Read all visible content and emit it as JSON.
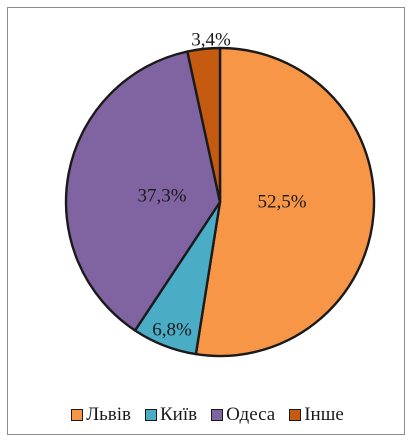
{
  "chart_data": {
    "type": "pie",
    "title": "",
    "slices": [
      {
        "name": "Львів",
        "value": 52.5,
        "label": "52,5%",
        "color": "#F79646"
      },
      {
        "name": "Київ",
        "value": 6.8,
        "label": "6,8%",
        "color": "#4BACC6"
      },
      {
        "name": "Одеса",
        "value": 37.3,
        "label": "37,3%",
        "color": "#8064A2"
      },
      {
        "name": "Інше",
        "value": 3.4,
        "label": "3,4%",
        "color": "#C55A11"
      }
    ],
    "legend_position": "bottom"
  }
}
